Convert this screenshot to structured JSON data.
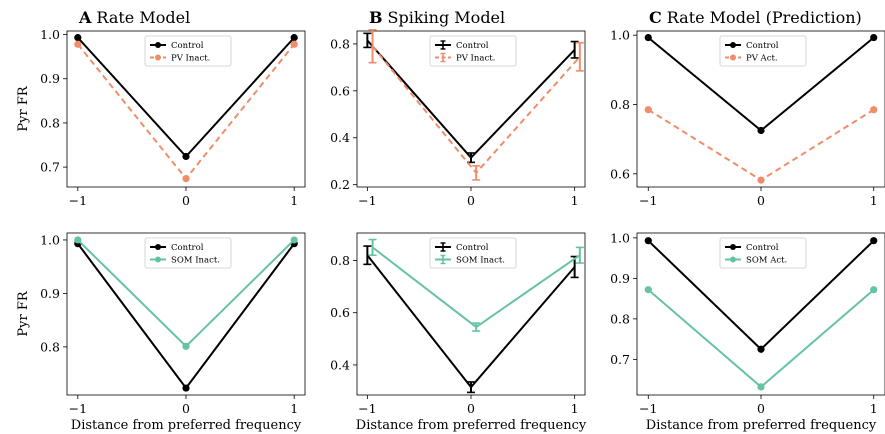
{
  "figure": {
    "ylabel_html": "Pyr FR",
    "xlabel": "Distance from preferred frequency"
  },
  "chart_data": [
    {
      "panel": "A",
      "title_letter": "A",
      "title": "Rate Model",
      "type": "line",
      "x": [
        -1,
        0,
        1
      ],
      "xticks": [
        -1,
        0,
        1
      ],
      "xtick_labels": [
        "−1",
        "0",
        "1"
      ],
      "ylim": [
        0.655,
        1.008
      ],
      "yticks": [
        0.7,
        0.8,
        0.9,
        1.0
      ],
      "ytick_labels": [
        "0.7",
        "0.8",
        "0.9",
        "1.0"
      ],
      "ylabel": "Pyr FR",
      "xlabel": "",
      "legend": "top-center",
      "series": [
        {
          "name": "Control",
          "values": [
            0.993,
            0.724,
            0.993
          ],
          "color": "#000000",
          "dashed": false
        },
        {
          "name": "PV Inact.",
          "values": [
            0.978,
            0.674,
            0.978
          ],
          "color": "#f08c6a",
          "dashed": true
        }
      ]
    },
    {
      "panel": "B",
      "title_letter": "B",
      "title": "Spiking Model",
      "type": "line",
      "x": [
        -1,
        0,
        1
      ],
      "xticks": [
        -1,
        0,
        1
      ],
      "xtick_labels": [
        "−1",
        "0",
        "1"
      ],
      "ylim": [
        0.19,
        0.855
      ],
      "yticks": [
        0.2,
        0.4,
        0.6,
        0.8
      ],
      "ytick_labels": [
        "0.2",
        "0.4",
        "0.6",
        "0.8"
      ],
      "ylabel": "",
      "xlabel": "",
      "legend": "top-center",
      "error_bars": true,
      "series": [
        {
          "name": "Control",
          "values": [
            0.815,
            0.315,
            0.775
          ],
          "errors": [
            0.03,
            0.02,
            0.035
          ],
          "x_offset": 0,
          "color": "#000000",
          "dashed": false
        },
        {
          "name": "PV Inact.",
          "values": [
            0.79,
            0.25,
            0.745
          ],
          "errors": [
            0.07,
            0.03,
            0.06
          ],
          "x_offset": 0.05,
          "color": "#f08c6a",
          "dashed": true
        }
      ]
    },
    {
      "panel": "C",
      "title_letter": "C",
      "title": "Rate Model (Prediction)",
      "type": "line",
      "x": [
        -1,
        0,
        1
      ],
      "xticks": [
        -1,
        0,
        1
      ],
      "xtick_labels": [
        "−1",
        "0",
        "1"
      ],
      "ylim": [
        0.562,
        1.012
      ],
      "yticks": [
        0.6,
        0.8,
        1.0
      ],
      "ytick_labels": [
        "0.6",
        "0.8",
        "1.0"
      ],
      "ylabel": "",
      "xlabel": "",
      "legend": "top-center",
      "series": [
        {
          "name": "Control",
          "values": [
            0.993,
            0.725,
            0.993
          ],
          "color": "#000000",
          "dashed": false
        },
        {
          "name": "PV Act.",
          "values": [
            0.785,
            0.582,
            0.785
          ],
          "color": "#f08c6a",
          "dashed": true
        }
      ]
    },
    {
      "panel": "D",
      "title_letter": "",
      "title": "",
      "type": "line",
      "x": [
        -1,
        0,
        1
      ],
      "xticks": [
        -1,
        0,
        1
      ],
      "xtick_labels": [
        "−1",
        "0",
        "1"
      ],
      "ylim": [
        0.71,
        1.013
      ],
      "yticks": [
        0.8,
        0.9,
        1.0
      ],
      "ytick_labels": [
        "0.8",
        "0.9",
        "1.0"
      ],
      "ylabel": "Pyr FR",
      "xlabel": "Distance from preferred frequency",
      "legend": "top-center",
      "series": [
        {
          "name": "Control",
          "values": [
            0.993,
            0.723,
            0.993
          ],
          "color": "#000000",
          "dashed": false
        },
        {
          "name": "SOM Inact.",
          "values": [
            1.0,
            0.801,
            1.0
          ],
          "color": "#66c2a5",
          "dashed": false
        }
      ]
    },
    {
      "panel": "E",
      "title_letter": "",
      "title": "",
      "type": "line",
      "x": [
        -1,
        0,
        1
      ],
      "xticks": [
        -1,
        0,
        1
      ],
      "xtick_labels": [
        "−1",
        "0",
        "1"
      ],
      "ylim": [
        0.285,
        0.905
      ],
      "yticks": [
        0.4,
        0.6,
        0.8
      ],
      "ytick_labels": [
        "0.4",
        "0.6",
        "0.8"
      ],
      "ylabel": "",
      "xlabel": "Distance from preferred frequency",
      "legend": "top-center",
      "error_bars": true,
      "series": [
        {
          "name": "Control",
          "values": [
            0.82,
            0.315,
            0.775
          ],
          "errors": [
            0.035,
            0.02,
            0.04
          ],
          "x_offset": 0,
          "color": "#000000",
          "dashed": false
        },
        {
          "name": "SOM Inact.",
          "values": [
            0.85,
            0.545,
            0.82
          ],
          "errors": [
            0.03,
            0.015,
            0.03
          ],
          "x_offset": 0.05,
          "color": "#66c2a5",
          "dashed": false
        }
      ]
    },
    {
      "panel": "F",
      "title_letter": "",
      "title": "",
      "type": "line",
      "x": [
        -1,
        0,
        1
      ],
      "xticks": [
        -1,
        0,
        1
      ],
      "xtick_labels": [
        "−1",
        "0",
        "1"
      ],
      "ylim": [
        0.612,
        1.012
      ],
      "yticks": [
        0.7,
        0.8,
        0.9,
        1.0
      ],
      "ytick_labels": [
        "0.7",
        "0.8",
        "0.9",
        "1.0"
      ],
      "ylabel": "",
      "xlabel": "Distance from preferred frequency",
      "legend": "top-center",
      "series": [
        {
          "name": "Control",
          "values": [
            0.993,
            0.725,
            0.993
          ],
          "color": "#000000",
          "dashed": false
        },
        {
          "name": "SOM Act.",
          "values": [
            0.872,
            0.632,
            0.872
          ],
          "color": "#66c2a5",
          "dashed": false
        }
      ]
    }
  ]
}
